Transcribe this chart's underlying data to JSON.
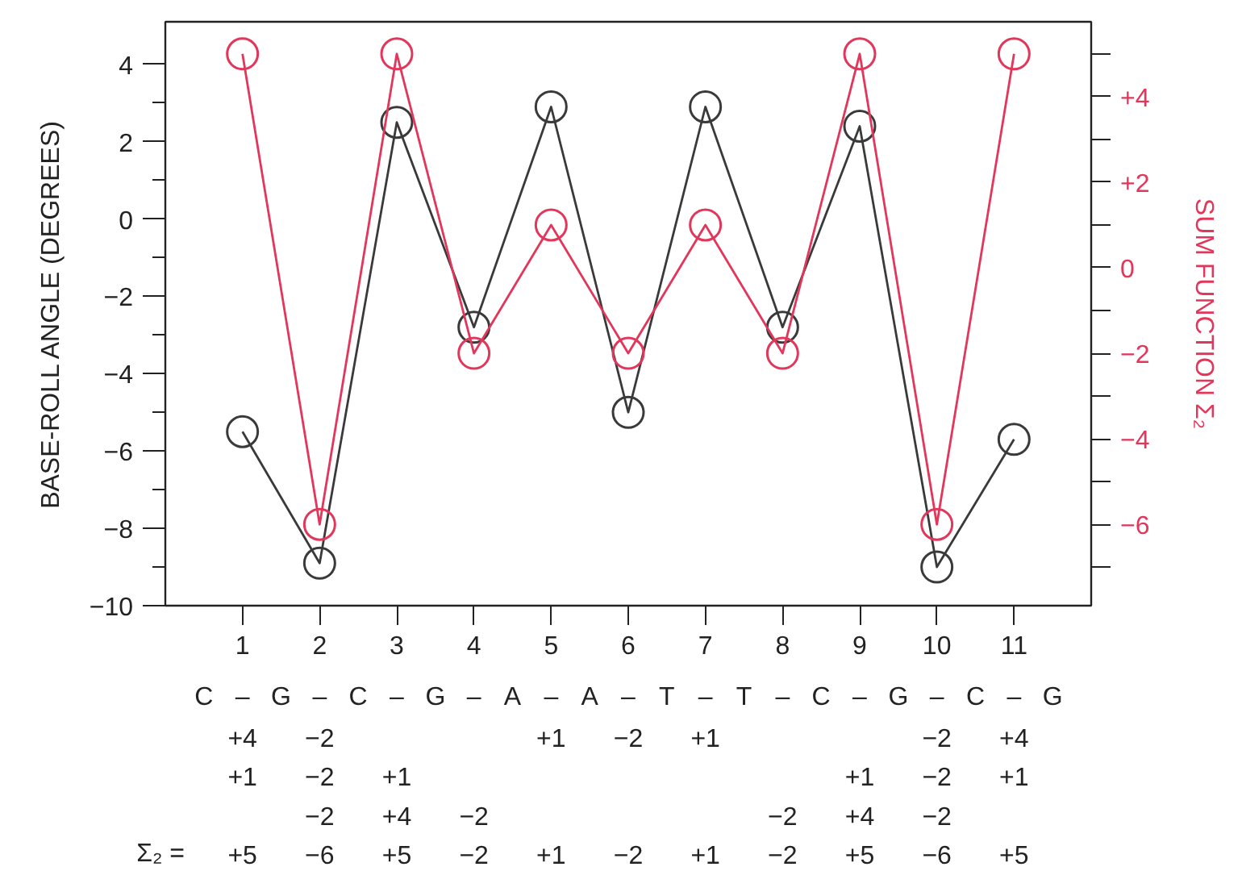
{
  "chart_data": {
    "type": "line",
    "x": [
      1,
      2,
      3,
      4,
      5,
      6,
      7,
      8,
      9,
      10,
      11
    ],
    "xlim": [
      0,
      12
    ],
    "xticks": [
      1,
      2,
      3,
      4,
      5,
      6,
      7,
      8,
      9,
      10,
      11
    ],
    "ylim": [
      -10,
      5.1
    ],
    "yticks": [
      {
        "value": -10,
        "label": "−10"
      },
      {
        "value": -9,
        "label": null
      },
      {
        "value": -8,
        "label": "−8"
      },
      {
        "value": -7,
        "label": null
      },
      {
        "value": -6,
        "label": "−6"
      },
      {
        "value": -5,
        "label": null
      },
      {
        "value": -4,
        "label": "−4"
      },
      {
        "value": -3,
        "label": null
      },
      {
        "value": -2,
        "label": "−2"
      },
      {
        "value": -1,
        "label": null
      },
      0,
      {
        "value": 1,
        "label": null
      },
      2,
      {
        "value": 3,
        "label": null
      },
      4
    ],
    "y2lim": [
      -7.9,
      5.75
    ],
    "y2ticks": [
      {
        "value": -7,
        "label": null
      },
      {
        "value": -6,
        "label": "−6"
      },
      {
        "value": -5,
        "label": null
      },
      {
        "value": -4,
        "label": "−4"
      },
      {
        "value": -3,
        "label": null
      },
      {
        "value": -2,
        "label": "−2"
      },
      {
        "value": -1,
        "label": null
      },
      0,
      {
        "value": 1,
        "label": null
      },
      {
        "value": 2,
        "label": "+2"
      },
      {
        "value": 3,
        "label": null
      },
      {
        "value": 4,
        "label": "+4"
      },
      {
        "value": 5,
        "label": null
      }
    ],
    "ylabel": "BASE-ROLL ANGLE (DEGREES)",
    "y2label": "SUM FUNCTION Σ₂",
    "series": [
      {
        "color": "#3a3a3a",
        "values": [
          -5.5,
          -8.9,
          2.5,
          -2.8,
          2.9,
          -5.0,
          2.9,
          -2.8,
          2.4,
          -9.0,
          -5.7
        ]
      },
      {
        "color": "#e2365a",
        "axis": "y2",
        "values": [
          5,
          -6,
          5,
          -2,
          1,
          -2,
          1,
          -2,
          5,
          -6,
          5
        ]
      }
    ],
    "marker": "circle",
    "line_style": "solid",
    "grid": false,
    "annotations": [
      " C  –  G  –  C  –  G  –  A  –  A  –  T  –  T  –  C  –  G  –  C  –  G",
      "    +4    −2                +1    −2    +1                −2    +4",
      "    +1    −2    +1                                  +1    −2    +1",
      "          −2    +4    −2                      −2    +4    −2",
      "    +5    −6    +5    −2    +1    −2    +1    −2    +5    −6    +5",
      "Σ₂ ="
    ]
  }
}
